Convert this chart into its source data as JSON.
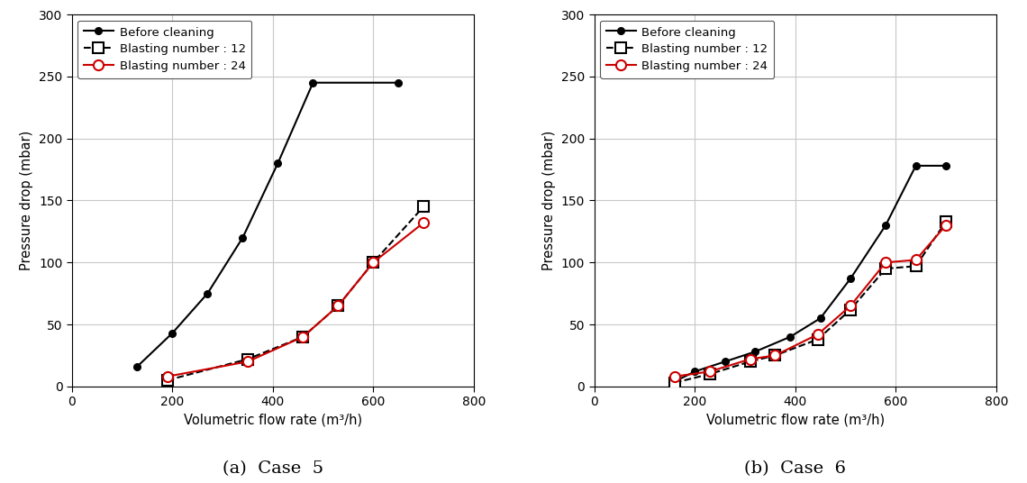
{
  "case5": {
    "before_cleaning": {
      "x": [
        130,
        200,
        270,
        340,
        410,
        480,
        650
      ],
      "y": [
        16,
        43,
        75,
        120,
        180,
        245,
        245
      ]
    },
    "blasting12": {
      "x": [
        190,
        350,
        460,
        530,
        600,
        700
      ],
      "y": [
        5,
        22,
        40,
        65,
        100,
        145
      ]
    },
    "blasting24": {
      "x": [
        190,
        350,
        460,
        530,
        600,
        700
      ],
      "y": [
        8,
        20,
        40,
        65,
        100,
        132
      ]
    },
    "xlabel": "Volumetric flow rate (m³/h)",
    "ylabel": "Pressure drop (mbar)",
    "xlim": [
      0,
      800
    ],
    "ylim": [
      0,
      300
    ],
    "xticks": [
      0,
      200,
      400,
      600,
      800
    ],
    "yticks": [
      0,
      50,
      100,
      150,
      200,
      250,
      300
    ],
    "caption": "(a)  Case  5"
  },
  "case6": {
    "before_cleaning": {
      "x": [
        160,
        200,
        260,
        320,
        390,
        450,
        510,
        580,
        640,
        700
      ],
      "y": [
        4,
        12,
        20,
        28,
        40,
        55,
        87,
        130,
        178,
        178
      ]
    },
    "blasting12": {
      "x": [
        160,
        230,
        310,
        360,
        445,
        510,
        580,
        640,
        700
      ],
      "y": [
        3,
        10,
        20,
        25,
        38,
        62,
        95,
        97,
        133
      ]
    },
    "blasting24": {
      "x": [
        160,
        230,
        310,
        360,
        445,
        510,
        580,
        640,
        700
      ],
      "y": [
        8,
        12,
        22,
        25,
        42,
        65,
        100,
        102,
        130
      ]
    },
    "xlabel": "Volumetric flow rate (m³/h)",
    "ylabel": "Pressure drop (mbar)",
    "xlim": [
      0,
      800
    ],
    "ylim": [
      0,
      300
    ],
    "xticks": [
      0,
      200,
      400,
      600,
      800
    ],
    "yticks": [
      0,
      50,
      100,
      150,
      200,
      250,
      300
    ],
    "caption": "(b)  Case  6"
  },
  "legend": {
    "before_cleaning": "Before cleaning",
    "blasting12": "Blasting number : 12",
    "blasting24": "Blasting number : 24"
  },
  "colors": {
    "before_cleaning": "#000000",
    "blasting12": "#000000",
    "blasting24": "#cc0000"
  },
  "bg_color": "#ffffff",
  "grid_color": "#c8c8c8"
}
